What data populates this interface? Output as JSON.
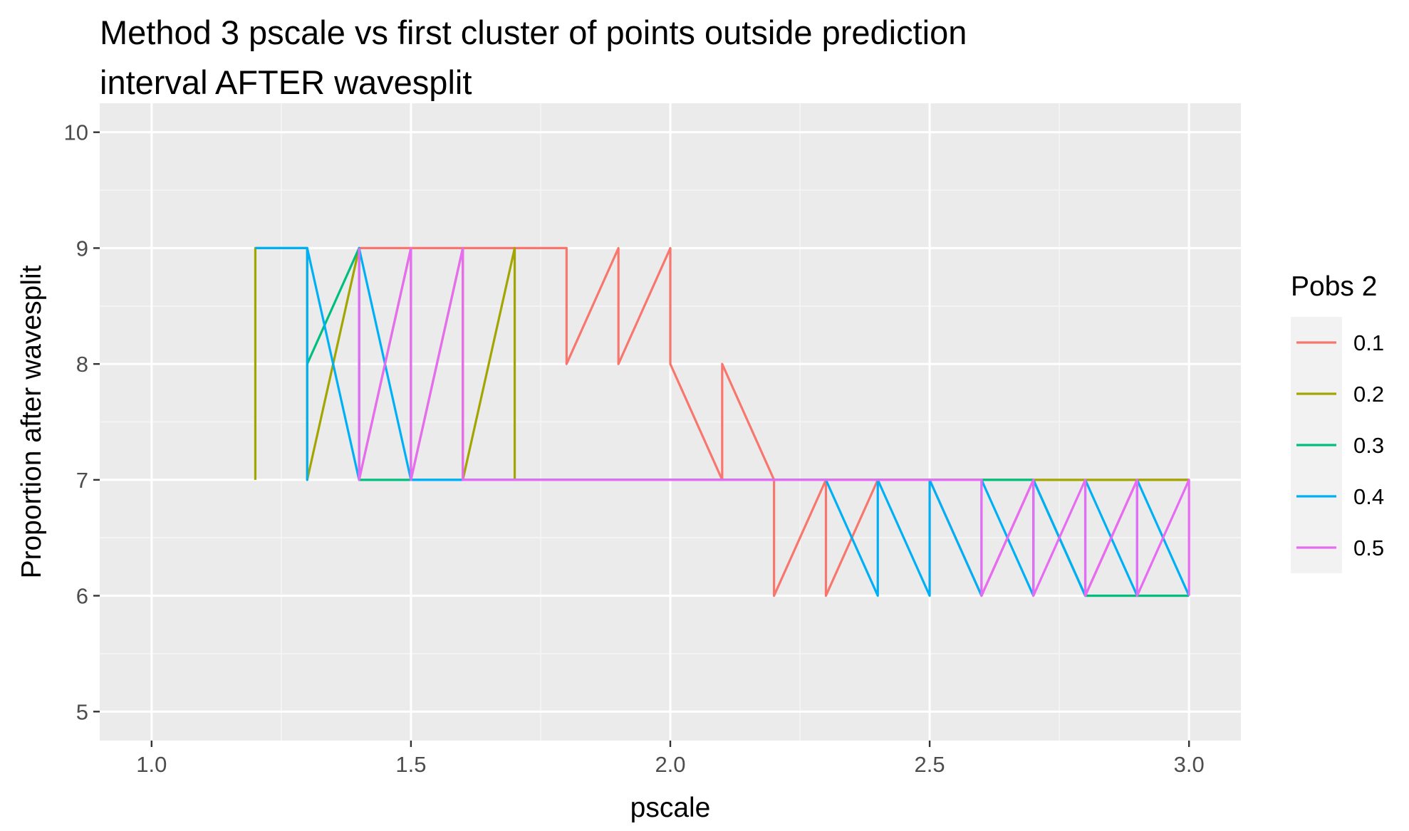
{
  "chart_data": {
    "type": "line",
    "title": [
      "Method 3 pscale vs first cluster of points outside prediction",
      "interval AFTER wavesplit"
    ],
    "xlabel": "pscale",
    "ylabel": "Proportion after wavesplit",
    "xlim": [
      0.9,
      3.1
    ],
    "ylim": [
      4.75,
      10.25
    ],
    "x_ticks": [
      1.0,
      1.5,
      2.0,
      2.5,
      3.0
    ],
    "x_tick_labels": [
      "1.0",
      "1.5",
      "2.0",
      "2.5",
      "3.0"
    ],
    "y_ticks": [
      5,
      6,
      7,
      8,
      9,
      10
    ],
    "y_tick_labels": [
      "5",
      "6",
      "7",
      "8",
      "9",
      "10"
    ],
    "grid": true,
    "legend": {
      "title": "Pobs 2",
      "placement": "right"
    },
    "series": [
      {
        "name": "0.1",
        "color": "#F8766D",
        "points": [
          [
            1.4,
            9
          ],
          [
            1.5,
            9
          ],
          [
            1.6,
            9
          ],
          [
            1.7,
            9
          ],
          [
            1.8,
            9
          ],
          [
            1.8,
            8
          ],
          [
            1.9,
            9
          ],
          [
            1.9,
            8
          ],
          [
            2.0,
            9
          ],
          [
            2.0,
            8
          ],
          [
            2.1,
            7
          ],
          [
            2.1,
            8
          ],
          [
            2.2,
            7
          ],
          [
            2.2,
            6
          ],
          [
            2.3,
            7
          ],
          [
            2.3,
            6
          ],
          [
            2.4,
            7
          ],
          [
            2.5,
            7
          ],
          [
            2.6,
            6
          ],
          [
            2.7,
            7
          ],
          [
            2.8,
            6
          ],
          [
            2.9,
            7
          ],
          [
            3.0,
            7
          ]
        ]
      },
      {
        "name": "0.2",
        "color": "#A3A500",
        "points": [
          [
            1.2,
            7
          ],
          [
            1.2,
            9
          ],
          [
            1.3,
            9
          ],
          [
            1.3,
            7
          ],
          [
            1.4,
            9
          ],
          [
            1.4,
            7
          ],
          [
            1.5,
            9
          ],
          [
            1.5,
            7
          ],
          [
            1.6,
            9
          ],
          [
            1.6,
            7
          ],
          [
            1.7,
            9
          ],
          [
            1.7,
            7
          ],
          [
            1.8,
            7
          ],
          [
            1.9,
            7
          ],
          [
            2.0,
            7
          ],
          [
            2.1,
            7
          ],
          [
            2.2,
            7
          ],
          [
            2.3,
            7
          ],
          [
            2.4,
            7
          ],
          [
            2.5,
            7
          ],
          [
            2.6,
            7
          ],
          [
            2.7,
            7
          ],
          [
            2.8,
            7
          ],
          [
            2.9,
            7
          ],
          [
            3.0,
            7
          ]
        ]
      },
      {
        "name": "0.3",
        "color": "#00BF7D",
        "points": [
          [
            1.3,
            8
          ],
          [
            1.4,
            9
          ],
          [
            1.4,
            7
          ],
          [
            1.5,
            7
          ],
          [
            1.6,
            7
          ],
          [
            1.7,
            7
          ],
          [
            1.8,
            7
          ],
          [
            1.9,
            7
          ],
          [
            2.0,
            7
          ],
          [
            2.1,
            7
          ],
          [
            2.2,
            7
          ],
          [
            2.3,
            7
          ],
          [
            2.4,
            7
          ],
          [
            2.5,
            7
          ],
          [
            2.6,
            7
          ],
          [
            2.7,
            7
          ],
          [
            2.8,
            6
          ],
          [
            2.9,
            6
          ],
          [
            3.0,
            6
          ]
        ]
      },
      {
        "name": "0.4",
        "color": "#00B0F6",
        "points": [
          [
            1.2,
            9
          ],
          [
            1.3,
            9
          ],
          [
            1.3,
            7
          ],
          [
            1.3,
            9
          ],
          [
            1.4,
            7
          ],
          [
            1.4,
            9
          ],
          [
            1.5,
            7
          ],
          [
            1.6,
            7
          ],
          [
            1.7,
            7
          ],
          [
            1.8,
            7
          ],
          [
            1.9,
            7
          ],
          [
            2.0,
            7
          ],
          [
            2.1,
            7
          ],
          [
            2.2,
            7
          ],
          [
            2.3,
            7
          ],
          [
            2.4,
            6
          ],
          [
            2.4,
            7
          ],
          [
            2.5,
            6
          ],
          [
            2.5,
            7
          ],
          [
            2.6,
            6
          ],
          [
            2.6,
            7
          ],
          [
            2.7,
            6
          ],
          [
            2.7,
            7
          ],
          [
            2.8,
            6
          ],
          [
            2.8,
            7
          ],
          [
            2.9,
            6
          ],
          [
            2.9,
            7
          ],
          [
            3.0,
            6
          ]
        ]
      },
      {
        "name": "0.5",
        "color": "#E76BF3",
        "points": [
          [
            1.4,
            9
          ],
          [
            1.4,
            7
          ],
          [
            1.5,
            9
          ],
          [
            1.5,
            7
          ],
          [
            1.6,
            9
          ],
          [
            1.6,
            7
          ],
          [
            1.7,
            7
          ],
          [
            1.8,
            7
          ],
          [
            1.9,
            7
          ],
          [
            2.0,
            7
          ],
          [
            2.1,
            7
          ],
          [
            2.2,
            7
          ],
          [
            2.3,
            7
          ],
          [
            2.4,
            7
          ],
          [
            2.5,
            7
          ],
          [
            2.6,
            7
          ],
          [
            2.6,
            6
          ],
          [
            2.7,
            7
          ],
          [
            2.7,
            6
          ],
          [
            2.8,
            7
          ],
          [
            2.8,
            6
          ],
          [
            2.9,
            7
          ],
          [
            2.9,
            6
          ],
          [
            3.0,
            7
          ],
          [
            3.0,
            6
          ]
        ]
      }
    ]
  },
  "colors": {
    "panel_background": "#EBEBEB",
    "grid_major": "#FFFFFF",
    "grid_minor": "#F5F5F5",
    "tick_label": "#4D4D4D",
    "legend_key_background": "#F2F2F2"
  }
}
